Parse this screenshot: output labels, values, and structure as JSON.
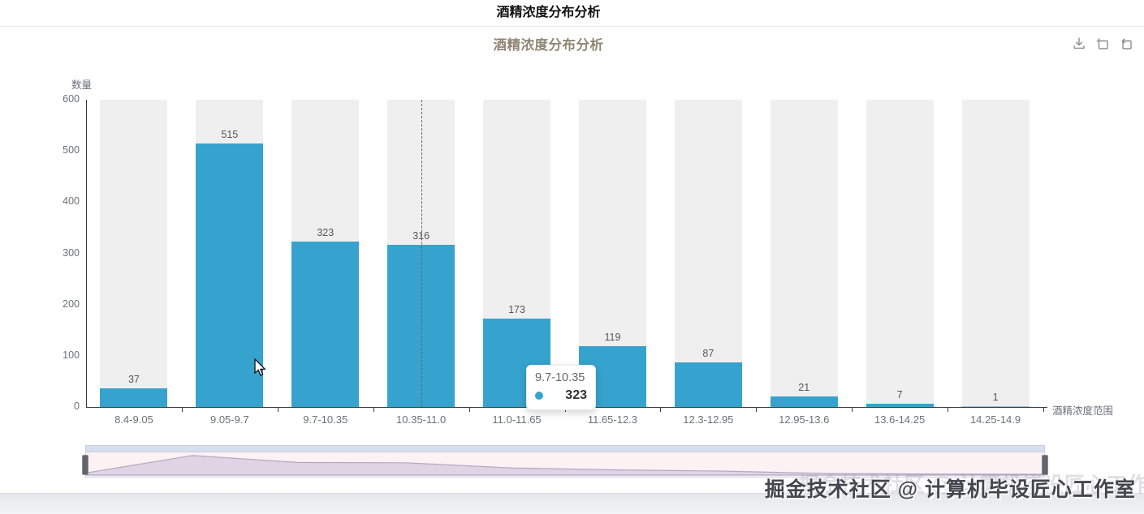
{
  "header": {
    "title": "酒精浓度分布分析"
  },
  "chart": {
    "title": "酒精浓度分布分析",
    "toolbox_icons": [
      "save-image-download-icon",
      "marquee-zoom-icon",
      "restore-icon"
    ]
  },
  "chart_data": {
    "type": "bar",
    "title": "酒精浓度分布分析",
    "categories": [
      "8.4-9.05",
      "9.05-9.7",
      "9.7-10.35",
      "10.35-11.0",
      "11.0-11.65",
      "11.65-12.3",
      "12.3-12.95",
      "12.95-13.6",
      "13.6-14.25",
      "14.25-14.9"
    ],
    "values": [
      37,
      515,
      323,
      316,
      173,
      119,
      87,
      21,
      7,
      1
    ],
    "xlabel": "酒精浓度范围",
    "ylabel": "数量",
    "ylim": [
      0,
      600
    ],
    "y_ticks": [
      0,
      100,
      200,
      300,
      400,
      500,
      600
    ],
    "grid": false,
    "legend_position": "none",
    "bar_labels_shown": true,
    "colors": {
      "bar": "#36a3ce",
      "bar_background": "#efefef",
      "axis_line": "#3a3a42",
      "tick_label": "#6e7079",
      "title": "#8f8772"
    }
  },
  "axis_pointer": {
    "style": "dashed",
    "category_index": 3
  },
  "tooltip": {
    "category": "9.7-10.35",
    "value": "323",
    "marker_color": "#36a3ce"
  },
  "data_zoom": {
    "range": "100%",
    "shadow_values": [
      37,
      515,
      323,
      316,
      173,
      119,
      87,
      21,
      7,
      1
    ]
  },
  "watermark": {
    "text": "掘金技术社区 @ 计算机毕设匠心工作室"
  }
}
